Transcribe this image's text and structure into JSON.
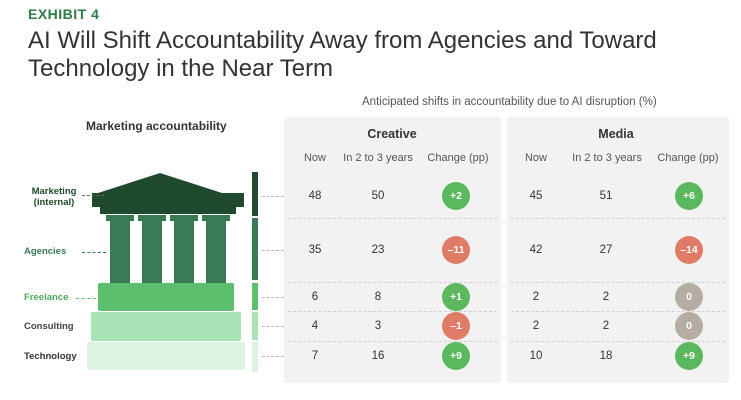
{
  "header": {
    "exhibit": "EXHIBIT 4",
    "title": "AI Will Shift Accountability Away from Agencies and Toward Technology in the Near Term",
    "subtitle": "Anticipated shifts in accountability due to AI disruption (%)",
    "left_heading": "Marketing accountability"
  },
  "chart_data": {
    "type": "table",
    "title": "AI Will Shift Accountability Away from Agencies and Toward Technology in the Near Term",
    "subtitle": "Anticipated shifts in accountability due to AI disruption (%)",
    "row_heading": "Marketing accountability",
    "rows": [
      {
        "label": "Marketing (internal)",
        "color": "#1f4a2c"
      },
      {
        "label": "Agencies",
        "color": "#3a7a57"
      },
      {
        "label": "Freelance",
        "color": "#5cbf6e"
      },
      {
        "label": "Consulting",
        "color": "#a8e4b4"
      },
      {
        "label": "Technology",
        "color": "#dcf3e0"
      }
    ],
    "columns": [
      "Now",
      "In 2 to 3 years",
      "Change (pp)"
    ],
    "groups": [
      {
        "name": "Creative",
        "now": [
          48,
          35,
          6,
          4,
          7
        ],
        "in_2_to_3_years": [
          50,
          23,
          8,
          3,
          16
        ],
        "change": [
          "+2",
          "–11",
          "+1",
          "–1",
          "+9"
        ]
      },
      {
        "name": "Media",
        "now": [
          45,
          42,
          2,
          2,
          10
        ],
        "in_2_to_3_years": [
          51,
          27,
          2,
          2,
          18
        ],
        "change": [
          "+6",
          "–14",
          "0",
          "0",
          "+9"
        ]
      }
    ],
    "badge_colors": {
      "positive": "#5cb85c",
      "negative": "#e07b67",
      "neutral": "#b5ada3"
    }
  }
}
